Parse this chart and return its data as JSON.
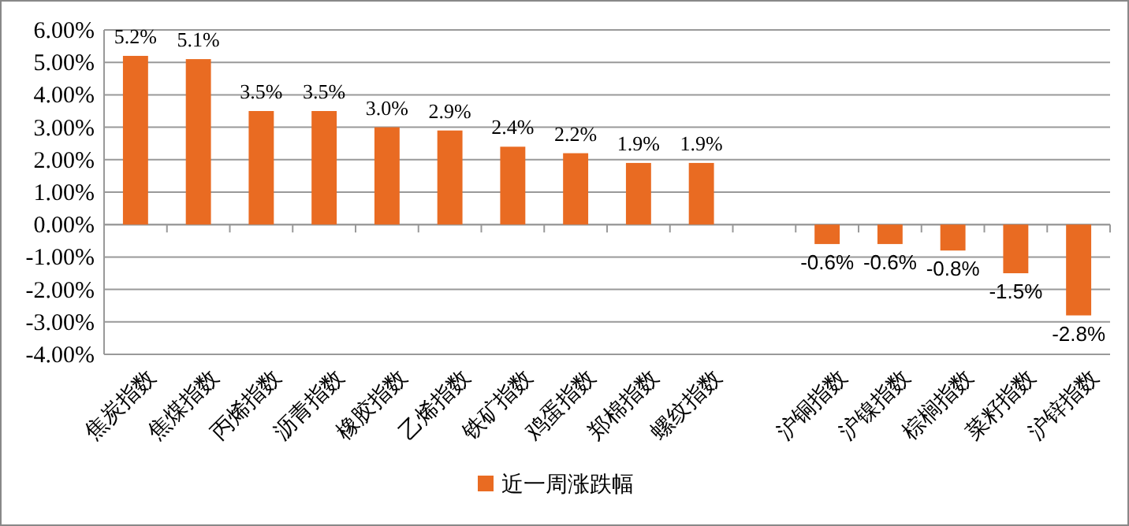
{
  "chart_data": {
    "type": "bar",
    "categories": [
      "焦炭指数",
      "焦煤指数",
      "丙烯指数",
      "沥青指数",
      "橡胶指数",
      "乙烯指数",
      "铁矿指数",
      "鸡蛋指数",
      "郑棉指数",
      "螺纹指数",
      null,
      "沪铜指数",
      "沪镍指数",
      "棕榈指数",
      "菜籽指数",
      "沪锌指数"
    ],
    "series": [
      {
        "name": "近一周涨跌幅",
        "color": "#e96b22",
        "values": [
          5.2,
          5.1,
          3.5,
          3.5,
          3.0,
          2.9,
          2.4,
          2.2,
          1.9,
          1.9,
          null,
          -0.6,
          -0.6,
          -0.8,
          -1.5,
          -2.8
        ],
        "value_labels": [
          "5.2%",
          "5.1%",
          "3.5%",
          "3.5%",
          "3.0%",
          "2.9%",
          "2.4%",
          "2.2%",
          "1.9%",
          "1.9%",
          null,
          "-0.6%",
          "-0.6%",
          "-0.8%",
          "-1.5%",
          "-2.8%"
        ]
      }
    ],
    "ylim": [
      -4,
      6
    ],
    "yticks": [
      {
        "value": 6,
        "label": "6.00%"
      },
      {
        "value": 5,
        "label": "5.00%"
      },
      {
        "value": 4,
        "label": "4.00%"
      },
      {
        "value": 3,
        "label": "3.00%"
      },
      {
        "value": 2,
        "label": "2.00%"
      },
      {
        "value": 1,
        "label": "1.00%"
      },
      {
        "value": 0,
        "label": "0.00%"
      },
      {
        "value": -1,
        "label": "-1.00%"
      },
      {
        "value": -2,
        "label": "-2.00%"
      },
      {
        "value": -3,
        "label": "-3.00%"
      },
      {
        "value": -4,
        "label": "-4.00%"
      }
    ],
    "grid": "y",
    "legend": "bottom"
  }
}
